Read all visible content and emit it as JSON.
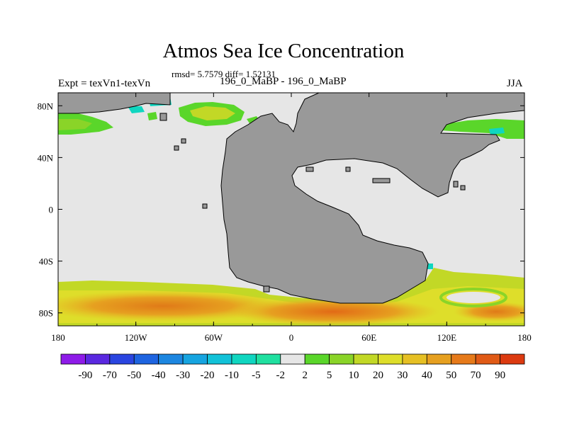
{
  "title": "Atmos Sea Ice Concentration",
  "stats_line": "rmsd= 5.7579 diff= 1.52131",
  "left_label": "Expt = texVn1-texVn",
  "center_label": "196_0_MaBP - 196_0_MaBP",
  "right_label": "JJA",
  "colors": {
    "land": "#999999",
    "ocean_zero": "#e6e6e6",
    "frame": "#000000"
  },
  "chart_data": {
    "type": "heatmap",
    "projection": "cylindrical-equidistant",
    "lon_range": [
      -180,
      180
    ],
    "lat_range": [
      -90,
      90
    ],
    "x_ticks": [
      "180",
      "120W",
      "60W",
      "0",
      "60E",
      "120E",
      "180"
    ],
    "y_ticks": [
      "80N",
      "40N",
      "0",
      "40S",
      "80S"
    ],
    "colorbar": {
      "labels": [
        "-90",
        "-70",
        "-50",
        "-40",
        "-30",
        "-20",
        "-10",
        "-5",
        "-2",
        "2",
        "5",
        "10",
        "20",
        "30",
        "40",
        "50",
        "70",
        "90"
      ],
      "colors": [
        "#8e1be8",
        "#5a28e0",
        "#2a45e0",
        "#1e64e0",
        "#1c86e0",
        "#16a4e0",
        "#12c2d8",
        "#10d6c0",
        "#20e0a0",
        "#e6e6e6",
        "#5ad62a",
        "#8ad428",
        "#c2d826",
        "#dede2a",
        "#e6c024",
        "#e6a020",
        "#e67a1a",
        "#e05a16",
        "#dc3a10"
      ]
    },
    "regions": [
      {
        "name": "southern-ocean-band",
        "lat": [
          -88,
          -58
        ],
        "lon": [
          -180,
          180
        ],
        "value_range": [
          5,
          40
        ]
      },
      {
        "name": "southern-ocean-core",
        "lat": [
          -85,
          -72
        ],
        "lon": [
          -150,
          80
        ],
        "value_range": [
          30,
          50
        ]
      },
      {
        "name": "arctic-patch-europe",
        "lat": [
          72,
          86
        ],
        "lon": [
          -95,
          -55
        ],
        "value_range": [
          5,
          20
        ]
      },
      {
        "name": "arctic-patch-northwest",
        "lat": [
          68,
          82
        ],
        "lon": [
          -180,
          -150
        ],
        "value_range": [
          2,
          10
        ]
      },
      {
        "name": "arctic-patch-northeast",
        "lat": [
          64,
          78
        ],
        "lon": [
          105,
          180
        ],
        "value_range": [
          2,
          10
        ]
      }
    ]
  }
}
